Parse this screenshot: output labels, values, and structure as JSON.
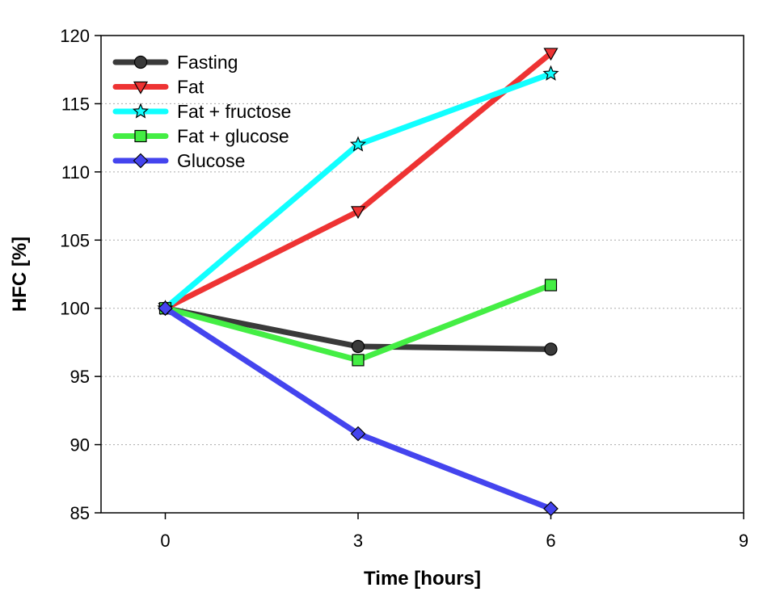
{
  "chart_data": {
    "type": "line",
    "title": "",
    "xlabel": "Time [hours]",
    "ylabel": "HFC [%]",
    "xlim": [
      -1,
      9
    ],
    "ylim": [
      85,
      120
    ],
    "xticks": [
      0,
      3,
      6,
      9
    ],
    "yticks": [
      85,
      90,
      95,
      100,
      105,
      110,
      115,
      120
    ],
    "grid": "horizontal-dotted",
    "legend_position": "top-left",
    "x": [
      0,
      3,
      6
    ],
    "series": [
      {
        "name": "Fasting",
        "values": [
          100,
          97.2,
          97.0
        ],
        "color": "#3a3a3a",
        "marker": "circle"
      },
      {
        "name": "Fat",
        "values": [
          100,
          107.1,
          118.7
        ],
        "color": "#ee3333",
        "marker": "triangle-down"
      },
      {
        "name": "Fat + fructose",
        "values": [
          100,
          112.0,
          117.2
        ],
        "color": "#11ffff",
        "marker": "star"
      },
      {
        "name": "Fat + glucose",
        "values": [
          100,
          96.2,
          101.7
        ],
        "color": "#44ee44",
        "marker": "square"
      },
      {
        "name": "Glucose",
        "values": [
          100,
          90.8,
          85.3
        ],
        "color": "#4444ee",
        "marker": "diamond"
      }
    ]
  }
}
